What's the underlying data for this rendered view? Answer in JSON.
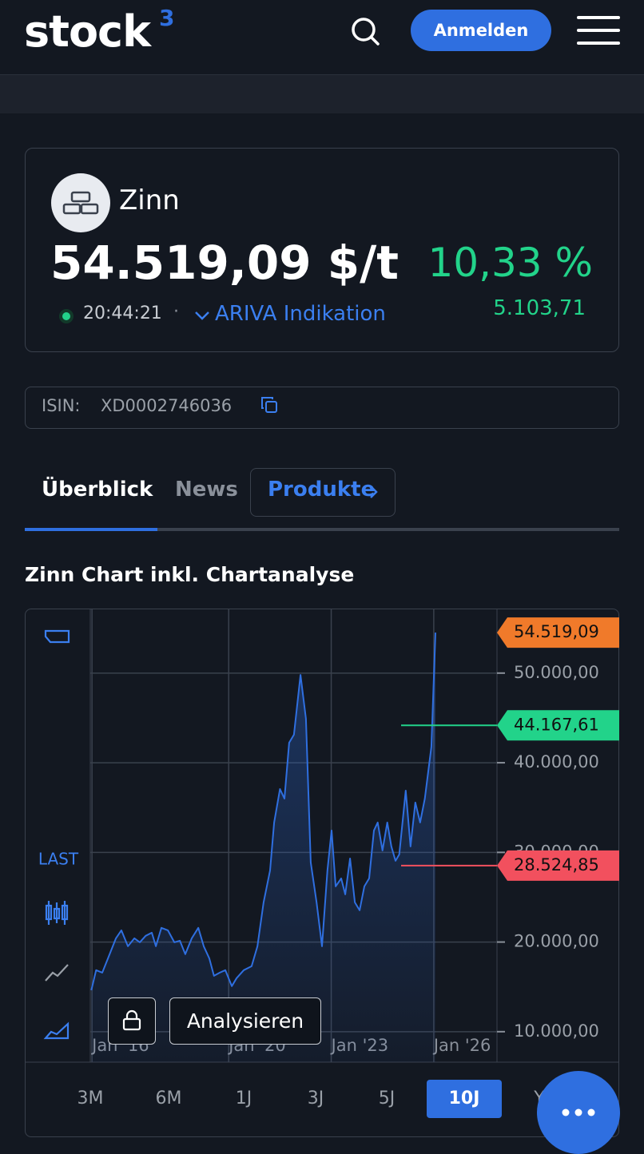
{
  "header": {
    "logo": "stock",
    "logo_sup": "3",
    "login": "Anmelden"
  },
  "instrument": {
    "name": "Zinn",
    "price": "54.519,09 $/t",
    "change_pct": "10,33 %",
    "change_abs": "5.103,71",
    "time": "20:44:21",
    "source": "ARIVA Indikation",
    "isin_label": "ISIN:",
    "isin": "XD0002746036"
  },
  "tabs": [
    "Überblick",
    "News",
    "Produkte"
  ],
  "chart_data": {
    "type": "line",
    "title": "Zinn Chart inkl. Chartanalyse",
    "color": "#2f6fe0",
    "area": true,
    "grid": true,
    "x": [
      2015.98,
      2016.12,
      2016.3,
      2016.47,
      2016.7,
      2016.86,
      2017.05,
      2017.24,
      2017.4,
      2017.57,
      2017.75,
      2017.87,
      2018.03,
      2018.22,
      2018.41,
      2018.57,
      2018.73,
      2018.92,
      2019.11,
      2019.27,
      2019.43,
      2019.57,
      2019.74,
      2019.9,
      2020.09,
      2020.23,
      2020.44,
      2020.67,
      2020.84,
      2021.02,
      2021.21,
      2021.33,
      2021.5,
      2021.63,
      2021.77,
      2021.91,
      2022.1,
      2022.26,
      2022.4,
      2022.57,
      2022.73,
      2022.89,
      2023.01,
      2023.13,
      2023.29,
      2023.41,
      2023.55,
      2023.69,
      2023.83,
      2023.97,
      2024.11,
      2024.25,
      2024.36,
      2024.5,
      2024.64,
      2024.76,
      2024.88,
      2024.99,
      2025.18,
      2025.32,
      2025.46,
      2025.6,
      2025.74,
      2025.93,
      2026.05
    ],
    "values": [
      14630,
      16860,
      16590,
      18190,
      20420,
      21310,
      19530,
      20420,
      19970,
      20690,
      21040,
      19530,
      21580,
      21310,
      19970,
      20150,
      18640,
      20420,
      21580,
      19530,
      18190,
      16230,
      16590,
      16860,
      15080,
      15970,
      16860,
      17300,
      19530,
      24430,
      27990,
      33330,
      37070,
      36000,
      42230,
      43130,
      49800,
      44910,
      28880,
      24430,
      19530,
      27990,
      32440,
      26210,
      27100,
      25320,
      29320,
      24430,
      23540,
      26210,
      27100,
      32440,
      33330,
      30210,
      33330,
      30660,
      29060,
      29770,
      36890,
      30660,
      35560,
      33330,
      36000,
      41790,
      54519.09
    ],
    "xlim": [
      2015.95,
      2027.85
    ],
    "xticks": [
      {
        "value": 2016,
        "label": "Jan '16"
      },
      {
        "value": 2020,
        "label": "Jan '20"
      },
      {
        "value": 2023,
        "label": "Jan '23"
      },
      {
        "value": 2026,
        "label": "Jan '26"
      }
    ],
    "ylim": [
      6600,
      57200
    ],
    "yticks": [
      {
        "value": 10000,
        "label": "10.000,00"
      },
      {
        "value": 20000,
        "label": "20.000,00"
      },
      {
        "value": 30000,
        "label": "30.000,00"
      },
      {
        "value": 40000,
        "label": "40.000,00"
      },
      {
        "value": 50000,
        "label": "50.000,00"
      }
    ],
    "price_tags": [
      {
        "value": 54519.09,
        "label": "54.519,09",
        "color": "#f07a2a",
        "line": false
      },
      {
        "value": 44167.61,
        "label": "44.167,61",
        "color": "#22d38a",
        "line": true
      },
      {
        "value": 28524.85,
        "label": "28.524,85",
        "color": "#f2505e",
        "line": true
      }
    ]
  },
  "chart_tools": {
    "mode": "LAST",
    "analyze": "Analysieren"
  },
  "ranges": [
    "3M",
    "6M",
    "1J",
    "3J",
    "5J",
    "10J",
    "Y"
  ],
  "active_range": 5
}
